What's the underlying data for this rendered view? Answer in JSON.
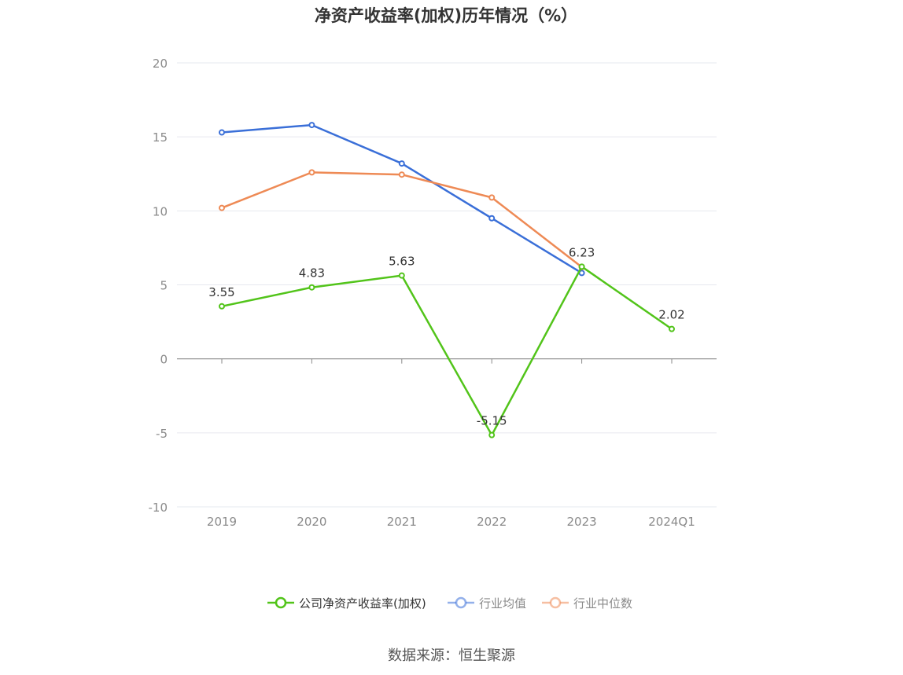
{
  "title": "净资产收益率(加权)历年情况（%）",
  "source": "数据来源：恒生聚源",
  "chart_data": {
    "type": "line",
    "title": "净资产收益率(加权)历年情况（%）",
    "categories": [
      "2019",
      "2020",
      "2021",
      "2022",
      "2023",
      "2024Q1"
    ],
    "ylim": [
      -10,
      20
    ],
    "yticks": [
      20,
      15,
      10,
      5,
      0,
      -5,
      -10
    ],
    "grid": true,
    "legend_position": "bottom",
    "series": [
      {
        "name": "公司净资产收益率(加权)",
        "color": "#52c41a",
        "values": [
          3.55,
          4.83,
          5.63,
          -5.15,
          6.23,
          2.02
        ],
        "labels": [
          "3.55",
          "4.83",
          "5.63",
          "-5.15",
          "6.23",
          "2.02"
        ]
      },
      {
        "name": "行业均值",
        "color": "#3a6fd8",
        "values": [
          15.3,
          15.8,
          13.2,
          9.5,
          5.8,
          null
        ]
      },
      {
        "name": "行业中位数",
        "color": "#ee8a55",
        "values": [
          10.2,
          12.6,
          12.45,
          10.9,
          6.2,
          null
        ]
      }
    ]
  }
}
